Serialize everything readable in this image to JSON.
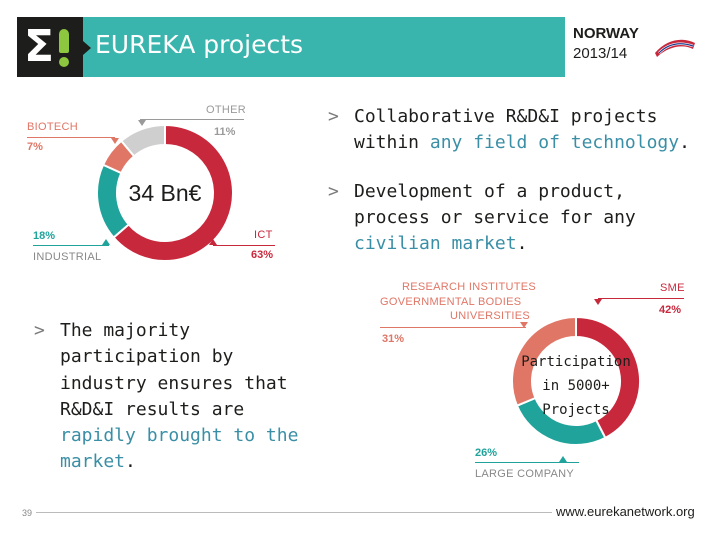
{
  "header": {
    "title": "EUREKA projects",
    "badge_country": "NORWAY",
    "badge_year": "2013/14",
    "colors": {
      "bar": "#3ab5ad",
      "logo_bg": "#1d1d1b",
      "logo_accent": "#8dc63f"
    }
  },
  "chart_data": [
    {
      "type": "pie",
      "center_label": "34 Bn€",
      "slices": [
        {
          "label": "ICT",
          "value": 63,
          "value_label": "63%",
          "color": "#c8283c"
        },
        {
          "label": "INDUSTRIAL",
          "value": 18,
          "value_label": "18%",
          "color": "#1fa39b"
        },
        {
          "label": "BIOTECH",
          "value": 7,
          "value_label": "7%",
          "color": "#e07666"
        },
        {
          "label": "OTHER",
          "value": 11,
          "value_label": "11%",
          "color": "#cfcfcf"
        }
      ]
    },
    {
      "type": "pie",
      "center_label_lines": [
        "Participation",
        "in 5000+",
        "Projects"
      ],
      "slices": [
        {
          "label": "SME",
          "value": 42,
          "value_label": "42%",
          "color": "#c8283c"
        },
        {
          "label": "LARGE COMPANY",
          "value": 26,
          "value_label": "26%",
          "color": "#1fa39b"
        },
        {
          "label_lines": [
            "RESEARCH INSTITUTES",
            "GOVERNMENTAL BODIES",
            "UNIVERSITIES"
          ],
          "value": 31,
          "value_label": "31%",
          "color": "#e07666"
        }
      ]
    }
  ],
  "bullets": {
    "marker": ">",
    "b1": {
      "l1a": "Collaborative R&D&I projects",
      "l2a": "within ",
      "l2b": "any field of technology",
      "l2c": "."
    },
    "b2": {
      "l1": "Development of a product,",
      "l2": "process or service for any",
      "l3a": "civilian market",
      "l3b": "."
    },
    "b3": {
      "l1": "The majority",
      "l2": "participation by",
      "l3": "industry ensures that",
      "l4": "R&D&I results are",
      "l5": "rapidly brought to the",
      "l6a": "market",
      "l6b": "."
    }
  },
  "footer": {
    "page": "39",
    "url": "www.eurekanetwork.org"
  }
}
